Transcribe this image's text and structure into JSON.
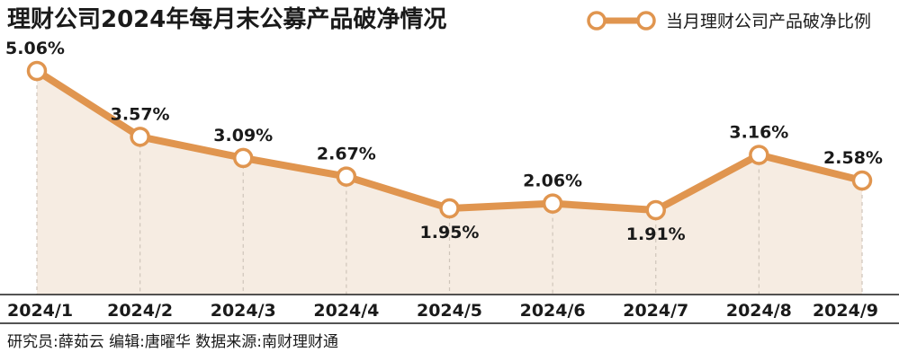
{
  "title": "理财公司2024年每月末公募产品破净情况",
  "legend": "当月理财公司产品破净比例",
  "footer": "研究员:薛茹云   编辑:唐曜华   数据来源:南财理财通",
  "colors": {
    "line": "#e0954f",
    "area": "#f6ece2",
    "guide": "#cfc5ba",
    "marker_fill": "#ffffff"
  },
  "chart_data": {
    "type": "line",
    "title": "理财公司2024年每月末公募产品破净情况",
    "xlabel": "",
    "ylabel": "",
    "categories": [
      "2024/1",
      "2024/2",
      "2024/3",
      "2024/4",
      "2024/5",
      "2024/6",
      "2024/7",
      "2024/8",
      "2024/9"
    ],
    "series": [
      {
        "name": "当月理财公司产品破净比例",
        "values": [
          5.06,
          3.57,
          3.09,
          2.67,
          1.95,
          2.06,
          1.91,
          3.16,
          2.58
        ],
        "labels": [
          "5.06%",
          "3.57%",
          "3.09%",
          "2.67%",
          "1.95%",
          "2.06%",
          "1.91%",
          "3.16%",
          "2.58%"
        ]
      }
    ],
    "grid": false,
    "legend_position": "top-right"
  }
}
